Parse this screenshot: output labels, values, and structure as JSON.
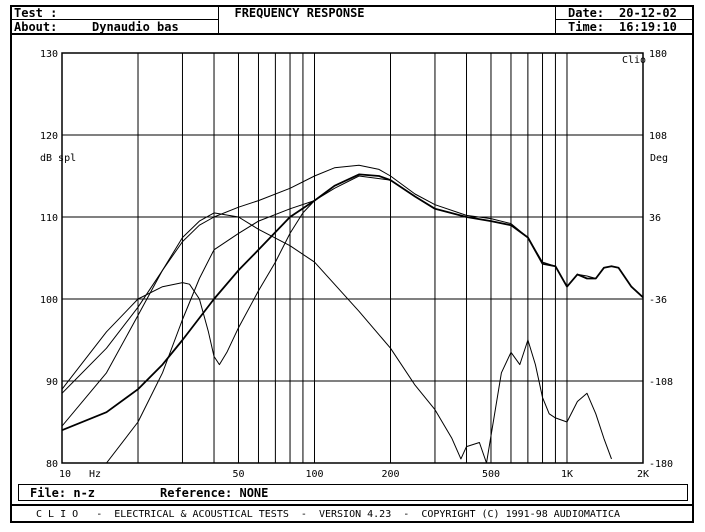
{
  "header": {
    "test_label": "Test :",
    "about_label": "About:",
    "about_value": "Dynaudio bas",
    "title": "FREQUENCY RESPONSE",
    "date_label": "Date:",
    "date_value": "20-12-02",
    "time_label": "Time:",
    "time_value": "16:19:10"
  },
  "chart_data": {
    "type": "line",
    "title": "FREQUENCY RESPONSE",
    "xscale": "log",
    "xlim": [
      10,
      2000
    ],
    "ylim": [
      80,
      130
    ],
    "y2lim": [
      -180,
      180
    ],
    "grid": true,
    "ylabel": "dB spl",
    "y2label": "Deg",
    "brand": "Clio",
    "xunit": "Hz",
    "xticks": [
      {
        "v": 10,
        "label": "10"
      },
      {
        "v": 50,
        "label": "50"
      },
      {
        "v": 100,
        "label": "100"
      },
      {
        "v": 200,
        "label": "200"
      },
      {
        "v": 500,
        "label": "500"
      },
      {
        "v": 1000,
        "label": "1K"
      },
      {
        "v": 2000,
        "label": "2K"
      }
    ],
    "yticks": [
      80,
      90,
      100,
      110,
      120,
      130
    ],
    "y2ticks": [
      180,
      108,
      36,
      -36,
      -108,
      -180
    ],
    "series": [
      {
        "points": [
          [
            10,
            88.5
          ],
          [
            15,
            94
          ],
          [
            20,
            99
          ],
          [
            25,
            103.5
          ],
          [
            30,
            107
          ],
          [
            35,
            109
          ],
          [
            40,
            110
          ],
          [
            50,
            111.2
          ],
          [
            60,
            112
          ],
          [
            80,
            113.5
          ],
          [
            100,
            115
          ],
          [
            120,
            116
          ],
          [
            150,
            116.3
          ],
          [
            180,
            115.8
          ],
          [
            200,
            115
          ],
          [
            250,
            112.8
          ],
          [
            300,
            111.5
          ],
          [
            400,
            110.2
          ],
          [
            500,
            109.8
          ],
          [
            600,
            109.2
          ],
          [
            700,
            107.5
          ],
          [
            800,
            104.5
          ],
          [
            900,
            104
          ],
          [
            1000,
            101.5
          ],
          [
            1100,
            103
          ],
          [
            1200,
            102.8
          ],
          [
            1300,
            102.5
          ],
          [
            1400,
            103.8
          ],
          [
            1500,
            104
          ],
          [
            1600,
            103.8
          ],
          [
            1800,
            101.5
          ],
          [
            2000,
            100.2
          ]
        ]
      },
      {
        "points": [
          [
            10,
            84
          ],
          [
            15,
            86.2
          ],
          [
            20,
            89
          ],
          [
            25,
            92
          ],
          [
            30,
            95
          ],
          [
            40,
            100
          ],
          [
            50,
            103.5
          ],
          [
            60,
            106
          ],
          [
            80,
            110
          ],
          [
            100,
            112
          ],
          [
            120,
            113.8
          ],
          [
            150,
            115.2
          ],
          [
            180,
            115
          ],
          [
            200,
            114.5
          ],
          [
            250,
            112.5
          ],
          [
            300,
            111
          ],
          [
            400,
            110
          ],
          [
            500,
            109.5
          ],
          [
            600,
            109
          ],
          [
            700,
            107.5
          ],
          [
            800,
            104.3
          ],
          [
            900,
            104
          ],
          [
            1000,
            101.5
          ],
          [
            1100,
            103
          ],
          [
            1200,
            102.5
          ],
          [
            1300,
            102.5
          ],
          [
            1400,
            103.8
          ],
          [
            1500,
            104
          ],
          [
            1600,
            103.8
          ],
          [
            1800,
            101.5
          ],
          [
            2000,
            100.2
          ]
        ]
      },
      {
        "points": [
          [
            10,
            89
          ],
          [
            15,
            96
          ],
          [
            20,
            100
          ],
          [
            25,
            101.5
          ],
          [
            30,
            102
          ],
          [
            32,
            101.8
          ],
          [
            35,
            100
          ],
          [
            38,
            96
          ],
          [
            40,
            93
          ],
          [
            42,
            92
          ],
          [
            45,
            93.5
          ],
          [
            50,
            96.5
          ],
          [
            60,
            101
          ],
          [
            70,
            104.5
          ],
          [
            80,
            108
          ],
          [
            90,
            110.5
          ],
          [
            100,
            112
          ],
          [
            120,
            113.5
          ],
          [
            150,
            115
          ],
          [
            200,
            114.5
          ]
        ]
      },
      {
        "points": [
          [
            15,
            80
          ],
          [
            20,
            85
          ],
          [
            25,
            91
          ],
          [
            30,
            97.5
          ],
          [
            35,
            102.5
          ],
          [
            40,
            106
          ],
          [
            50,
            108
          ],
          [
            60,
            109.5
          ],
          [
            80,
            111
          ],
          [
            100,
            112
          ]
        ]
      },
      {
        "points": [
          [
            10,
            84.5
          ],
          [
            15,
            91
          ],
          [
            20,
            98
          ],
          [
            25,
            103.5
          ],
          [
            30,
            107.5
          ],
          [
            35,
            109.5
          ],
          [
            40,
            110.5
          ],
          [
            50,
            110
          ],
          [
            60,
            108.5
          ],
          [
            80,
            106.5
          ],
          [
            100,
            104.5
          ],
          [
            150,
            98.5
          ],
          [
            200,
            94
          ],
          [
            250,
            89.5
          ],
          [
            300,
            86.5
          ],
          [
            350,
            83
          ],
          [
            380,
            80.5
          ],
          [
            400,
            82
          ],
          [
            450,
            82.5
          ],
          [
            480,
            80
          ],
          [
            550,
            91
          ],
          [
            600,
            93.5
          ],
          [
            650,
            92
          ],
          [
            700,
            95
          ],
          [
            750,
            92
          ],
          [
            800,
            88
          ],
          [
            850,
            86
          ],
          [
            900,
            85.5
          ],
          [
            1000,
            85
          ],
          [
            1100,
            87.5
          ],
          [
            1200,
            88.5
          ],
          [
            1300,
            86
          ],
          [
            1400,
            83
          ],
          [
            1500,
            80.5
          ]
        ]
      }
    ]
  },
  "file_bar": {
    "file_label": "File: n-z",
    "ref_label": "Reference: NONE"
  },
  "footer": {
    "text": "C L I O   -  ELECTRICAL & ACOUSTICAL TESTS  -  VERSION 4.23  -  COPYRIGHT (C) 1991-98 AUDIOMATICA"
  }
}
